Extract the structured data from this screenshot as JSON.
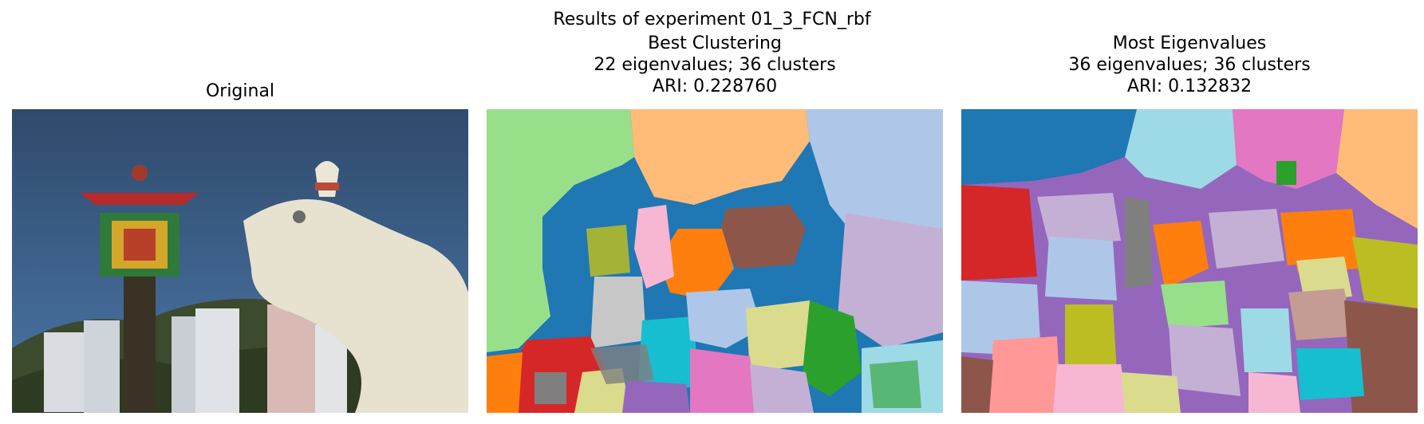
{
  "figure": {
    "suptitle": "Results of experiment 01_3_FCN_rbf"
  },
  "panels": [
    {
      "title": [
        "Original"
      ]
    },
    {
      "title": [
        "Best Clustering",
        "22 eigenvalues; 36 clusters",
        "ARI: 0.228760"
      ]
    },
    {
      "title": [
        "Most Eigenvalues",
        "36 eigenvalues; 36 clusters",
        "ARI: 0.132832"
      ]
    }
  ],
  "palette": {
    "sky": "#324f73",
    "tab20": [
      "#1f77b4",
      "#aec7e8",
      "#ff7f0e",
      "#ffbb78",
      "#2ca02c",
      "#98df8a",
      "#d62728",
      "#ff9896",
      "#9467bd",
      "#c5b0d5",
      "#8c564b",
      "#c49c94",
      "#e377c2",
      "#f7b6d2",
      "#7f7f7f",
      "#c7c7c7",
      "#bcbd22",
      "#dbdb8d",
      "#17becf",
      "#9edae5"
    ]
  }
}
